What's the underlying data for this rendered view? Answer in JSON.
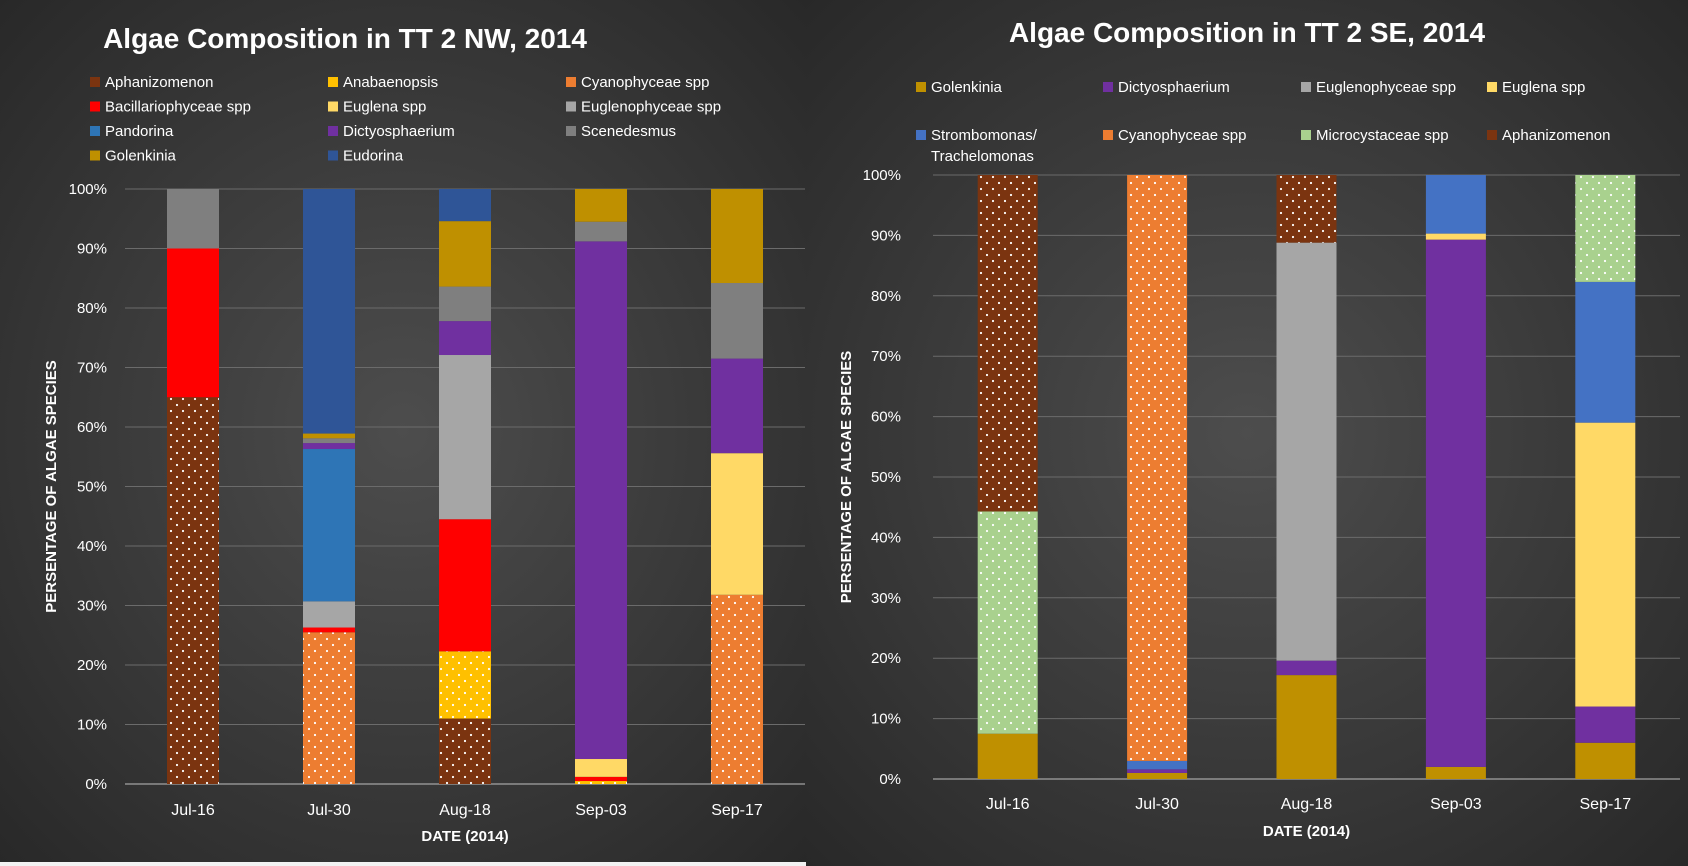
{
  "chart_data": [
    {
      "type": "bar",
      "stacked": true,
      "title": "Algae Composition in TT 2 NW, 2014",
      "xlabel": "DATE (2014)",
      "ylabel": "PERSENTAGE OF ALGAE SPECIES",
      "ylim": [
        0,
        100
      ],
      "y_ticks": [
        "0%",
        "10%",
        "20%",
        "30%",
        "40%",
        "50%",
        "60%",
        "70%",
        "80%",
        "90%",
        "100%"
      ],
      "grid": true,
      "legend_position": "top",
      "categories": [
        "Jul-16",
        "Jul-30",
        "Aug-18",
        "Sep-03",
        "Sep-17"
      ],
      "legend_order": [
        "Aphanizomenon",
        "Anabaenopsis",
        "Cyanophyceae spp",
        "Bacillariophyceae spp",
        "Euglena spp",
        "Euglenophyceae spp",
        "Pandorina",
        "Dictyosphaerium",
        "Scenedesmus",
        "Golenkinia",
        "Eudorina"
      ],
      "series": [
        {
          "name": "Aphanizomenon",
          "color": "#7B3410",
          "pattern": "dots",
          "values": [
            65,
            0,
            11,
            0,
            0
          ]
        },
        {
          "name": "Anabaenopsis",
          "color": "#FFC000",
          "pattern": "dots",
          "values": [
            0,
            0,
            11.3,
            0.5,
            0
          ]
        },
        {
          "name": "Cyanophyceae spp",
          "color": "#ED7D31",
          "pattern": "dots",
          "values": [
            0,
            25.5,
            0,
            0,
            31.8
          ]
        },
        {
          "name": "Bacillariophyceae spp",
          "color": "#FF0000",
          "values": [
            25,
            0.8,
            22.2,
            0.7,
            0
          ]
        },
        {
          "name": "Euglena spp",
          "color": "#FFD966",
          "values": [
            0,
            0,
            0,
            3,
            23.8
          ]
        },
        {
          "name": "Euglenophyceae spp",
          "color": "#A6A6A6",
          "values": [
            0,
            4.4,
            27.6,
            0,
            0
          ]
        },
        {
          "name": "Pandorina",
          "color": "#2E75B6",
          "values": [
            0,
            25.6,
            0,
            0,
            0
          ]
        },
        {
          "name": "Dictyosphaerium",
          "color": "#7030A0",
          "values": [
            0,
            1,
            5.7,
            87,
            15.9
          ]
        },
        {
          "name": "Scenedesmus",
          "color": "#7F7F7F",
          "values": [
            10,
            0.8,
            5.8,
            3.3,
            12.7
          ]
        },
        {
          "name": "Golenkinia",
          "color": "#BF9000",
          "values": [
            0,
            0.8,
            11,
            5.5,
            15.8
          ]
        },
        {
          "name": "Eudorina",
          "color": "#2F5597",
          "values": [
            0,
            41.1,
            5.4,
            0,
            0
          ]
        }
      ]
    },
    {
      "type": "bar",
      "stacked": true,
      "title": "Algae Composition in TT 2 SE, 2014",
      "xlabel": "DATE (2014)",
      "ylabel": "PERSENTAGE OF ALGAE SPECIES",
      "ylim": [
        0,
        100
      ],
      "y_ticks": [
        "0%",
        "10%",
        "20%",
        "30%",
        "40%",
        "50%",
        "60%",
        "70%",
        "80%",
        "90%",
        "100%"
      ],
      "grid": true,
      "legend_position": "top",
      "categories": [
        "Jul-16",
        "Jul-30",
        "Aug-18",
        "Sep-03",
        "Sep-17"
      ],
      "legend_order": [
        "Golenkinia",
        "Dictyosphaerium",
        "Euglenophyceae spp",
        "Euglena spp",
        "Strombomonas/ Trachelomonas",
        "Cyanophyceae spp",
        "Microcystaceae spp",
        "Aphanizomenon"
      ],
      "series": [
        {
          "name": "Golenkinia",
          "color": "#BF9000",
          "values": [
            7.5,
            1,
            17.2,
            2,
            6
          ]
        },
        {
          "name": "Dictyosphaerium",
          "color": "#7030A0",
          "values": [
            0,
            0.6,
            2.4,
            87.3,
            6
          ]
        },
        {
          "name": "Euglenophyceae spp",
          "color": "#A6A6A6",
          "values": [
            0,
            0,
            69.2,
            0,
            0
          ]
        },
        {
          "name": "Euglena spp",
          "color": "#FFD966",
          "values": [
            0,
            0,
            0,
            1,
            47
          ]
        },
        {
          "name": "Strombomonas/ Trachelomonas",
          "label_lines": [
            "Strombomonas/",
            "Trachelomonas"
          ],
          "color": "#4472C4",
          "values": [
            0,
            1.4,
            0,
            9.7,
            23.3
          ]
        },
        {
          "name": "Cyanophyceae spp",
          "color": "#ED7D31",
          "pattern": "dots",
          "values": [
            0,
            97,
            0,
            0,
            0
          ]
        },
        {
          "name": "Microcystaceae spp",
          "color": "#A9D18E",
          "pattern": "dots",
          "values": [
            36.8,
            0,
            0,
            0,
            17.7
          ]
        },
        {
          "name": "Aphanizomenon",
          "color": "#7B3410",
          "pattern": "dots",
          "values": [
            55.7,
            0,
            11.2,
            0,
            0
          ]
        }
      ]
    }
  ]
}
